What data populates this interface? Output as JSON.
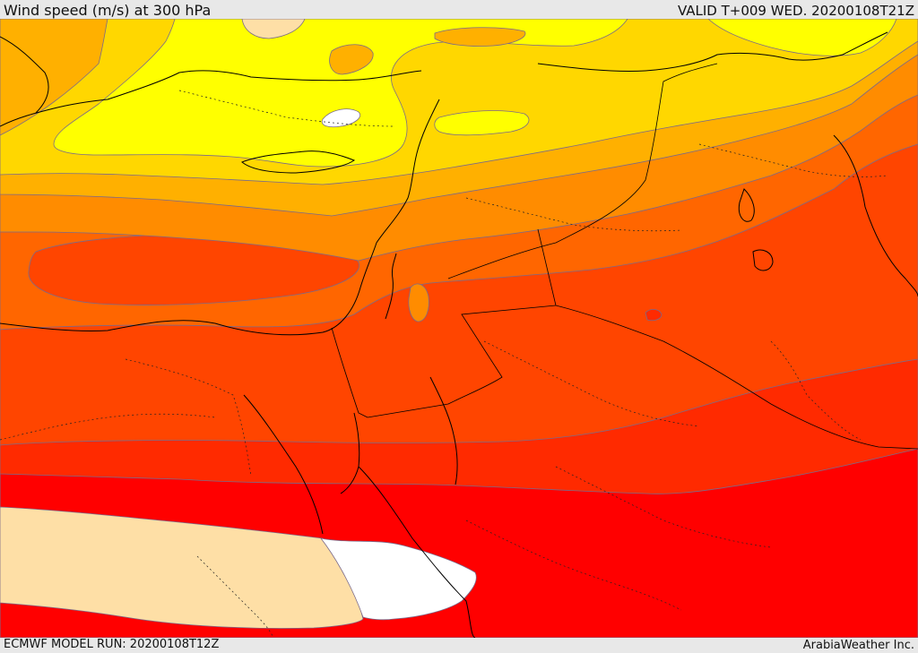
{
  "header": {
    "title": "Wind speed (m/s) at 300 hPa",
    "valid": "VALID T+009 WED. 20200108T21Z"
  },
  "footer": {
    "model_run": "ECMWF MODEL RUN: 20200108T12Z",
    "credit": "ArabiaWeather Inc."
  },
  "palette": {
    "band_light_yellow": "#ffff00",
    "band_gold": "#ffd700",
    "band_amber": "#ffb000",
    "band_orange": "#ff8c00",
    "band_dark_orange": "#ff6600",
    "band_red_orange": "#ff4500",
    "band_scarlet": "#ff2a00",
    "band_red": "#ff0000",
    "core_wheat": "#fedfa6",
    "core_white": "#ffffff",
    "contour_line": "#7a6a8a",
    "border_line": "#000000"
  }
}
